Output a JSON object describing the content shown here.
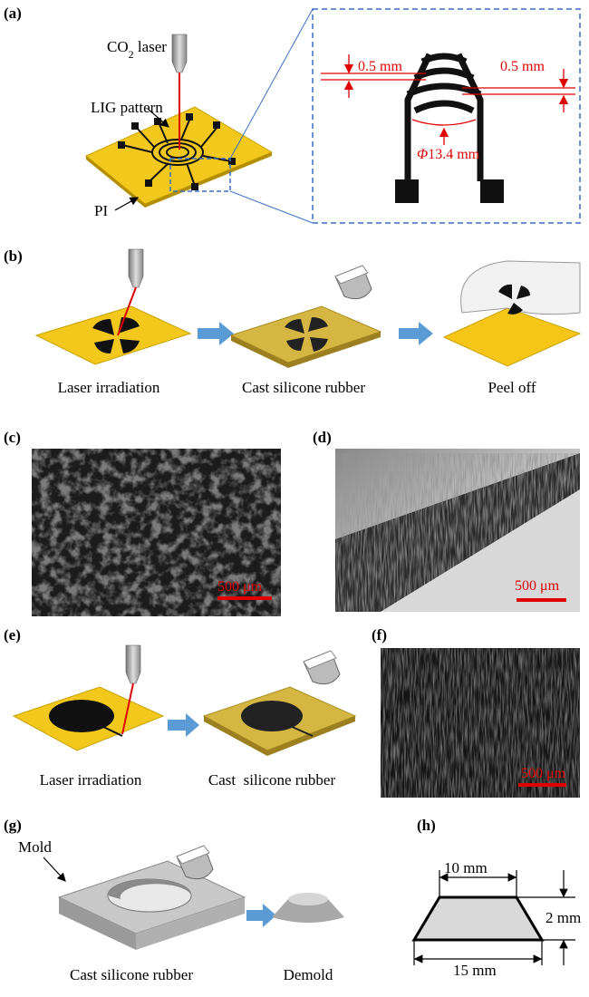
{
  "panel_labels": [
    "(a)",
    "(b)",
    "(c)",
    "(d)",
    "(e)",
    "(f)",
    "(g)",
    "(h)"
  ],
  "panel_a": {
    "laser_label": {
      "prefix": "CO",
      "subscript": "2",
      "suffix": " laser"
    },
    "pattern_label": "LIG pattern",
    "substrate_label": "PI",
    "inset_dims": [
      "0.5 mm",
      "0.5 mm"
    ],
    "diameter_label": {
      "symbol": "Φ",
      "text": "13.4 mm"
    }
  },
  "panel_b": {
    "steps": [
      "Laser irradiation",
      "Cast silicone rubber",
      "Peel off"
    ]
  },
  "panel_c": {
    "scale_bar": "500 μm"
  },
  "panel_d": {
    "scale_bar": "500 μm"
  },
  "panel_e": {
    "steps": [
      "Laser irradiation",
      "Cast  silicone rubber"
    ]
  },
  "panel_f": {
    "scale_bar": "500 μm"
  },
  "panel_g": {
    "mold_label": "Mold",
    "steps": [
      "Cast silicone rubber",
      "Demold"
    ]
  },
  "panel_h": {
    "dims": [
      "10 mm",
      "2 mm",
      "15 mm"
    ]
  }
}
